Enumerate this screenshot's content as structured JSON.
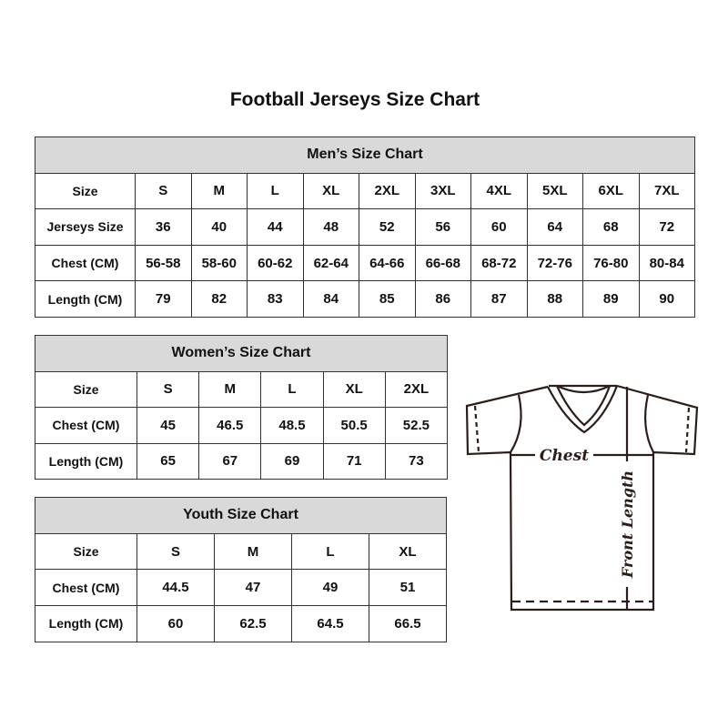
{
  "title": "Football Jerseys Size Chart",
  "men": {
    "heading": "Men’s Size Chart",
    "rows": [
      [
        "Size",
        "S",
        "M",
        "L",
        "XL",
        "2XL",
        "3XL",
        "4XL",
        "5XL",
        "6XL",
        "7XL"
      ],
      [
        "Jerseys Size",
        "36",
        "40",
        "44",
        "48",
        "52",
        "56",
        "60",
        "64",
        "68",
        "72"
      ],
      [
        "Chest (CM)",
        "56-58",
        "58-60",
        "60-62",
        "62-64",
        "64-66",
        "66-68",
        "68-72",
        "72-76",
        "76-80",
        "80-84"
      ],
      [
        "Length (CM)",
        "79",
        "82",
        "83",
        "84",
        "85",
        "86",
        "87",
        "88",
        "89",
        "90"
      ]
    ]
  },
  "women": {
    "heading": "Women’s Size Chart",
    "rows": [
      [
        "Size",
        "S",
        "M",
        "L",
        "XL",
        "2XL"
      ],
      [
        "Chest (CM)",
        "45",
        "46.5",
        "48.5",
        "50.5",
        "52.5"
      ],
      [
        "Length (CM)",
        "65",
        "67",
        "69",
        "71",
        "73"
      ]
    ]
  },
  "youth": {
    "heading": "Youth Size Chart",
    "rows": [
      [
        "Size",
        "S",
        "M",
        "L",
        "XL"
      ],
      [
        "Chest (CM)",
        "44.5",
        "47",
        "49",
        "51"
      ],
      [
        "Length (CM)",
        "60",
        "62.5",
        "64.5",
        "66.5"
      ]
    ]
  },
  "diagram": {
    "chest_label": "Chest",
    "length_label": "Front Length"
  },
  "colors": {
    "header_bg": "#d9d9d9",
    "border": "#333333",
    "line": "#2a1e1a"
  }
}
